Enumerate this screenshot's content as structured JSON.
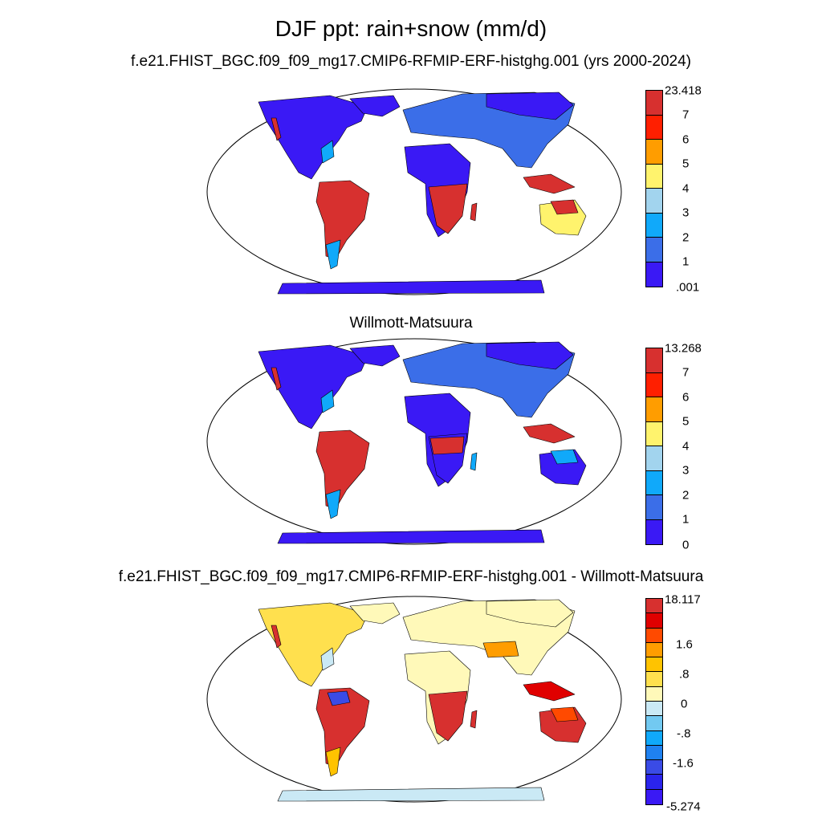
{
  "title": "DJF ppt: rain+snow (mm/d)",
  "panels": [
    {
      "subtitle": "f.e21.FHIST_BGC.f09_f09_mg17.CMIP6-RFMIP-ERF-histghg.001 (yrs 2000-2024)",
      "colorbar_labels": [
        "23.418",
        "7",
        "6",
        "5",
        "4",
        "3",
        "2",
        "1",
        ".001"
      ],
      "colorbar_colors": [
        "#d7302f",
        "#ff1f00",
        "#ff9d00",
        "#fff36d",
        "#a2d4ee",
        "#10a9fa",
        "#3b6ee8",
        "#3a19f5"
      ]
    },
    {
      "subtitle": "Willmott-Matsuura",
      "colorbar_labels": [
        "13.268",
        "7",
        "6",
        "5",
        "4",
        "3",
        "2",
        "1",
        "0"
      ],
      "colorbar_colors": [
        "#d7302f",
        "#ff1f00",
        "#ff9d00",
        "#fff36d",
        "#a2d4ee",
        "#10a9fa",
        "#3b6ee8",
        "#3a19f5"
      ]
    },
    {
      "subtitle": "f.e21.FHIST_BGC.f09_f09_mg17.CMIP6-RFMIP-ERF-histghg.001 - Willmott-Matsuura",
      "colorbar_labels": [
        "18.117",
        "1.6",
        ".8",
        "0",
        "-.8",
        "-1.6",
        "-5.274"
      ],
      "colorbar_colors": [
        "#d7302f",
        "#e00000",
        "#ff4a00",
        "#ff9d00",
        "#ffc300",
        "#ffe04e",
        "#fff9b9",
        "#cae9f5",
        "#72c9f1",
        "#10a9fa",
        "#1f81f0",
        "#3a4be6",
        "#2a24ec",
        "#3a19f5"
      ]
    }
  ]
}
